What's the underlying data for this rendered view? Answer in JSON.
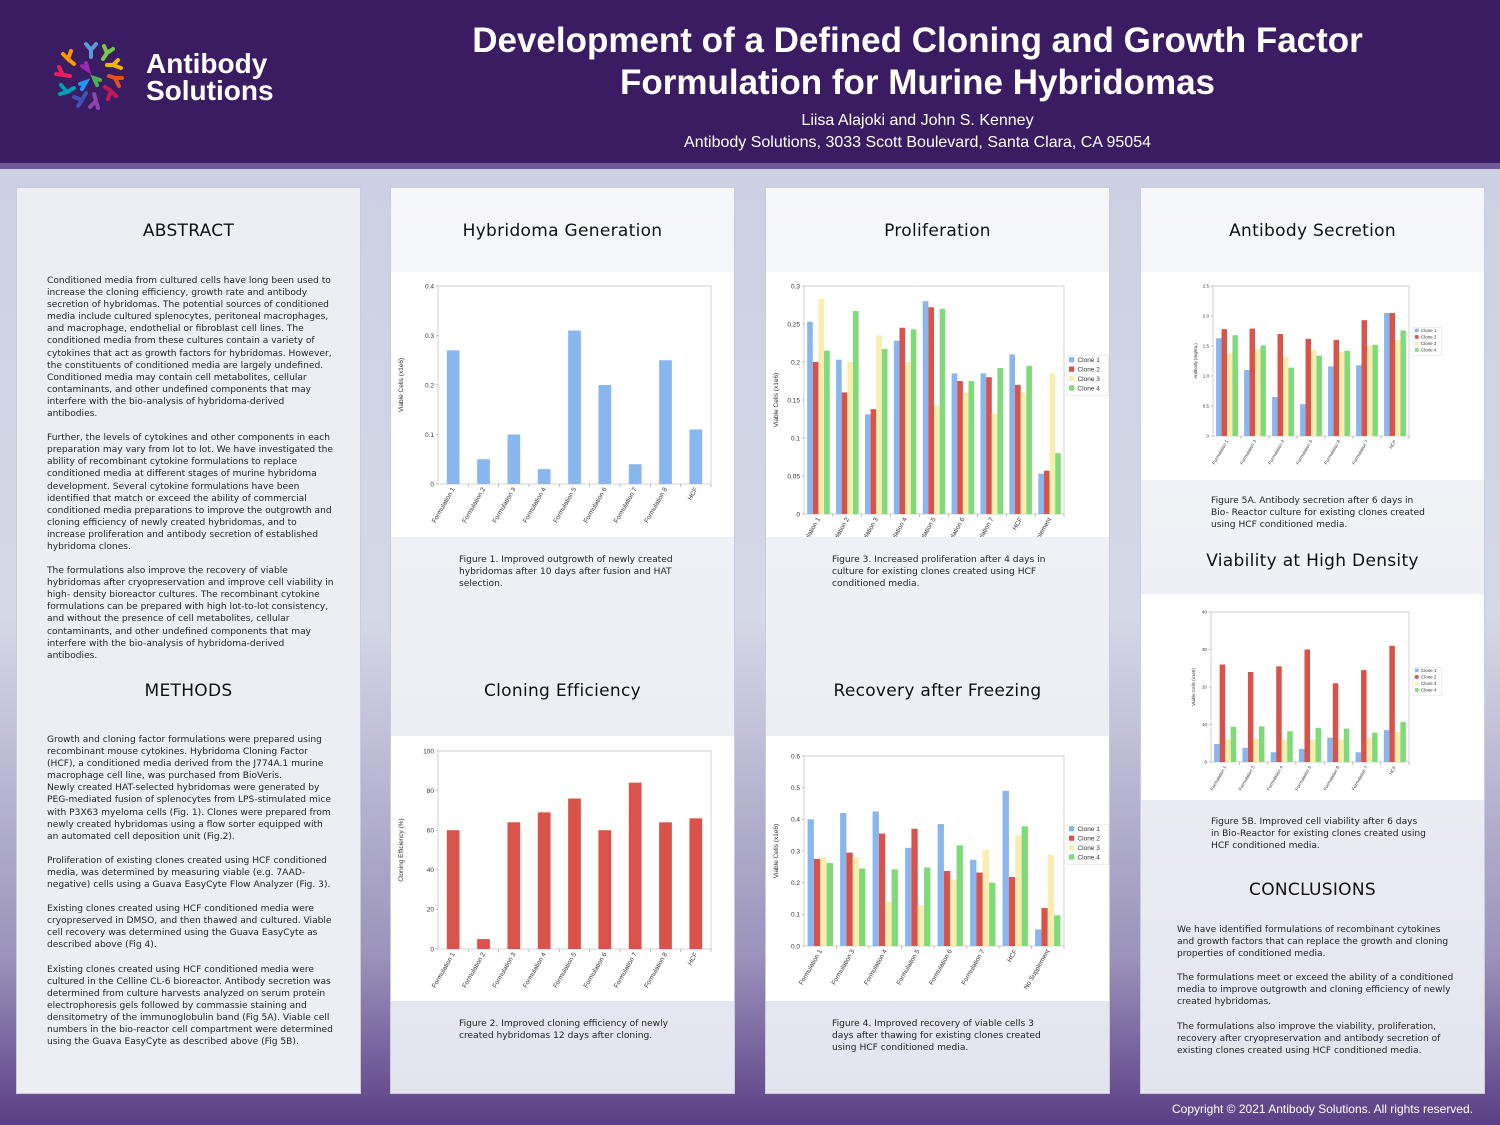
{
  "header": {
    "brand_line1": "Antibody",
    "brand_line2": "Solutions",
    "title_line1": "Development of a Defined Cloning and Growth Factor",
    "title_line2": "Formulation for Murine Hybridomas",
    "authors": "Liisa Alajoki and John S. Kenney",
    "affiliation": "Antibody Solutions, 3033 Scott Boulevard, Santa Clara, CA 95054"
  },
  "abstract": {
    "title": "ABSTRACT",
    "p1": "Conditioned media from cultured cells have long been used to increase the cloning efficiency, growth rate and antibody secretion of hybridomas. The potential sources of conditioned media include cultured splenocytes, peritoneal macrophages, and macrophage, endothelial or fibroblast cell lines. The conditioned media from these cultures contain a variety of cytokines that act as growth factors for hybridomas. However, the constituents of conditioned media are largely undefined. Conditioned media may contain cell metabolites, cellular contaminants, and other undefined components that may interfere with the bio-analysis of hybridoma-derived antibodies.",
    "p2": "Further, the levels of cytokines and other components in each preparation may vary from lot to lot. We have investigated the ability of recombinant cytokine formulations to replace conditioned media at different stages of murine hybridoma development. Several cytokine formulations have been identified that match or exceed the ability of commercial conditioned media preparations to improve the outgrowth and cloning efficiency of newly created hybridomas, and to increase proliferation and antibody secretion of established hybridoma clones.",
    "p3": "The formulations also improve the recovery of viable hybridomas after cryopreservation and improve cell viability in high- density bioreactor cultures. The recombinant cytokine formulations can be prepared with high lot-to-lot consistency, and without the presence of cell metabolites, cellular contaminants, and other undefined components that may interfere with the bio-analysis of hybridoma-derived antibodies."
  },
  "methods": {
    "title": "METHODS",
    "p1": "Growth and cloning factor formulations were prepared using recombinant mouse cytokines. Hybridoma Cloning Factor (HCF), a conditioned media derived from the J774A.1 murine macrophage cell line, was purchased from BioVeris.",
    "p2": "Newly created HAT-selected hybridomas were generated by PEG-mediated fusion of splenocytes from LPS-stimulated mice with P3X63 myeloma cells (Fig. 1). Clones were prepared from newly created hybridomas using a flow sorter equipped with an automated cell deposition unit (Fig.2).",
    "p3": "Proliferation of existing clones created using HCF conditioned media, was determined by measuring viable (e.g. 7AAD-negative) cells using a Guava EasyCyte Flow Analyzer (Fig. 3).",
    "p4": "Existing clones created using HCF conditioned media were cryopreserved in DMSO, and then thawed and cultured. Viable cell recovery was determined using the Guava EasyCyte as described above (Fig 4).",
    "p5": "Existing clones created using HCF conditioned media were cultured in the Celline CL-6 bioreactor. Antibody secretion was determined from culture harvests analyzed on serum protein electrophoresis gels followed by commassie staining and densitometry of the immunoglobulin band (Fig 5A). Viable cell numbers in the bio-reactor cell compartment were determined using the Guava EasyCyte as described above (Fig 5B)."
  },
  "sections": {
    "hybridoma": "Hybridoma Generation",
    "cloning": "Cloning Efficiency",
    "proliferation": "Proliferation",
    "recovery": "Recovery after Freezing",
    "secretion": "Antibody Secretion",
    "viability": "Viability at High Density",
    "conclusions": "CONCLUSIONS"
  },
  "captions": {
    "fig1": "Figure 1. Improved outgrowth of newly created hybridomas after 10 days after fusion and HAT selection.",
    "fig2": "Figure 2. Improved cloning efficiency of newly created hybridomas 12 days after cloning.",
    "fig3": "Figure 3. Increased proliferation after 4 days in culture for existing clones created using HCF conditioned media.",
    "fig4": "Figure 4. Improved recovery of viable cells 3 days after thawing for existing clones created using HCF conditioned media.",
    "fig5a": "Figure 5A. Antibody secretion after 6 days in Bio- Reactor culture for existing clones created using HCF conditioned media.",
    "fig5b": "Figure 5B. Improved cell viability after 6 days in Bio-Reactor for existing clones created using HCF conditioned media."
  },
  "conclusions": {
    "p1": "We have identified formulations of recombinant cytokines and growth factors that can replace the growth and cloning properties of conditioned media.",
    "p2": "The formulations meet or exceed the ability of a conditioned media to improve outgrowth and cloning efficiency of newly created hybridomas.",
    "p3": "The formulations also improve the viability, proliferation, recovery after cryopreservation and antibody secretion of existing clones created using HCF conditioned media."
  },
  "footer": {
    "copyright": "Copyright © 2021 Antibody Solutions. All rights reserved."
  },
  "colors": {
    "clone1": "#8ab6f0",
    "clone2": "#d9534a",
    "clone3": "#f7eeb0",
    "clone4": "#7fdb7a",
    "bar_blue": "#8ab6f0",
    "bar_red": "#d9534a"
  },
  "chart_data": [
    {
      "id": "fig1",
      "type": "bar",
      "ylabel": "Viable Cells (x1e6)",
      "ylim": [
        0,
        0.4
      ],
      "yticks": [
        "0",
        "0.1",
        "0.2",
        "0.3",
        "0.4"
      ],
      "categories": [
        "Formulation 1",
        "Formulation 2",
        "Formulation 3",
        "Formulation 4",
        "Formulation 5",
        "Formulation 6",
        "Formulation 7",
        "Formulation 8",
        "HCF"
      ],
      "series": [
        {
          "name": "",
          "values": [
            0.27,
            0.05,
            0.1,
            0.03,
            0.31,
            0.2,
            0.04,
            0.25,
            0.11
          ]
        }
      ]
    },
    {
      "id": "fig2",
      "type": "bar",
      "ylabel": "Cloning Efficiency (%)",
      "ylim": [
        0,
        100
      ],
      "yticks": [
        "0",
        "20",
        "40",
        "60",
        "80",
        "100"
      ],
      "categories": [
        "Formulation 1",
        "Formulation 2",
        "Formulation 3",
        "Formulation 4",
        "Formulation 5",
        "Formulation 6",
        "Formulation 7",
        "Formulation 8",
        "HCF"
      ],
      "series": [
        {
          "name": "",
          "values": [
            60,
            5,
            64,
            69,
            76,
            60,
            84,
            64,
            66
          ]
        }
      ]
    },
    {
      "id": "fig3",
      "type": "bar",
      "ylabel": "Viable Cells (x1e6)",
      "ylim": [
        0,
        0.3
      ],
      "yticks": [
        "0",
        "0.05",
        "0.1",
        "0.15",
        "0.2",
        "0.25",
        "0.3"
      ],
      "categories": [
        "Formulation 1",
        "Formulation 2",
        "Formulation 3",
        "Formulation 4",
        "Formulation 5",
        "Formulation 6",
        "Formulation 7",
        "HCF",
        "No Supplement"
      ],
      "series": [
        {
          "name": "Clone 1",
          "values": [
            0.253,
            0.203,
            0.131,
            0.228,
            0.28,
            0.185,
            0.185,
            0.21,
            0.053
          ]
        },
        {
          "name": "Clone 2",
          "values": [
            0.2,
            0.16,
            0.138,
            0.245,
            0.272,
            0.175,
            0.18,
            0.17,
            0.057
          ]
        },
        {
          "name": "Clone 3",
          "values": [
            0.283,
            0.2,
            0.235,
            0.2,
            0.143,
            0.16,
            0.132,
            0.16,
            0.185
          ]
        },
        {
          "name": "Clone 4",
          "values": [
            0.215,
            0.267,
            0.217,
            0.243,
            0.27,
            0.175,
            0.192,
            0.195,
            0.08
          ]
        }
      ]
    },
    {
      "id": "fig4",
      "type": "bar",
      "ylabel": "Viable Cells (x1e6)",
      "ylim": [
        0,
        0.6
      ],
      "yticks": [
        "0.0",
        "0.1",
        "0.2",
        "0.3",
        "0.4",
        "0.5",
        "0.6"
      ],
      "categories": [
        "Formulation 1",
        "Formulation 3",
        "Formulation 4",
        "Formulaiton 5",
        "Formulation 6",
        "Formulation 7",
        "HCF",
        "No Supplement"
      ],
      "series": [
        {
          "name": "Clone 1",
          "values": [
            0.4,
            0.42,
            0.425,
            0.31,
            0.385,
            0.272,
            0.49,
            0.052
          ]
        },
        {
          "name": "Clone 2",
          "values": [
            0.275,
            0.295,
            0.355,
            0.37,
            0.237,
            0.232,
            0.218,
            0.12
          ]
        },
        {
          "name": "Clone 3",
          "values": [
            0.28,
            0.28,
            0.14,
            0.128,
            0.21,
            0.305,
            0.35,
            0.288
          ]
        },
        {
          "name": "Clone 4",
          "values": [
            0.262,
            0.245,
            0.242,
            0.248,
            0.318,
            0.2,
            0.378,
            0.097
          ]
        }
      ]
    },
    {
      "id": "fig5a",
      "type": "bar",
      "ylabel": "Antibody (mg/mL)",
      "ylim": [
        0,
        2.5
      ],
      "yticks": [
        "0",
        "0.5",
        "1.0",
        "1.5",
        "2.0",
        "2.5"
      ],
      "categories": [
        "Formulation 1",
        "Formulation 3",
        "Formulation 4",
        "Formulation 5",
        "Formulation 6",
        "Formulation 7",
        "HCF"
      ],
      "series": [
        {
          "name": "Clone 1",
          "values": [
            1.63,
            1.1,
            0.65,
            0.53,
            1.16,
            1.18,
            2.05
          ]
        },
        {
          "name": "Clone 2",
          "values": [
            1.78,
            1.79,
            1.7,
            1.62,
            1.6,
            1.93,
            2.05
          ]
        },
        {
          "name": "Clone 3",
          "values": [
            1.38,
            1.45,
            1.32,
            1.43,
            1.4,
            1.5,
            1.6
          ]
        },
        {
          "name": "Clone 4",
          "values": [
            1.68,
            1.51,
            1.14,
            1.34,
            1.42,
            1.52,
            1.76
          ]
        }
      ]
    },
    {
      "id": "fig5b",
      "type": "bar",
      "ylabel": "Viable Cells (x1e6)",
      "ylim": [
        0,
        40
      ],
      "yticks": [
        "0",
        "10",
        "20",
        "30",
        "40"
      ],
      "categories": [
        "Formulation 1",
        "Formulation 3",
        "Formulation 4",
        "Formulation 5",
        "Formulation 6",
        "Formulation 7",
        "HCF"
      ],
      "series": [
        {
          "name": "Clone 1",
          "values": [
            4.8,
            3.8,
            2.6,
            3.5,
            6.5,
            2.6,
            8.5
          ]
        },
        {
          "name": "Clone 2",
          "values": [
            26,
            24,
            25.5,
            30,
            21,
            24.5,
            31
          ]
        },
        {
          "name": "Clone 3",
          "values": [
            6.0,
            6.2,
            6.0,
            6.0,
            6.0,
            6.5,
            8.0
          ]
        },
        {
          "name": "Clone 4",
          "values": [
            9.4,
            9.5,
            8.2,
            9.1,
            8.9,
            7.8,
            10.7
          ]
        }
      ]
    }
  ]
}
